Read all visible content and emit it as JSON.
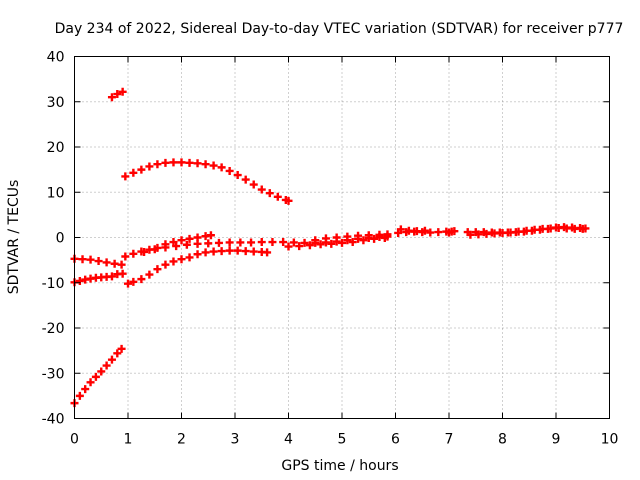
{
  "chart_data": {
    "type": "scatter",
    "title": "Day 234 of 2022, Sidereal Day-to-day VTEC variation (SDTVAR) for receiver p777",
    "xlabel": "GPS time / hours",
    "ylabel": "SDTVAR / TECUs",
    "xlim": [
      0,
      10
    ],
    "ylim": [
      -40,
      40
    ],
    "xticks": [
      "0",
      "1",
      "2",
      "3",
      "4",
      "5",
      "6",
      "7",
      "8",
      "9",
      "10"
    ],
    "yticks": [
      "-40",
      "-30",
      "-20",
      "-10",
      "0",
      "10",
      "20",
      "30",
      "40"
    ],
    "grid": true,
    "marker": "+",
    "color": "#ff0000",
    "series": [
      {
        "points": [
          [
            0.0,
            -36.6
          ],
          [
            0.1,
            -35.0
          ],
          [
            0.2,
            -33.5
          ],
          [
            0.3,
            -32.0
          ],
          [
            0.4,
            -30.8
          ],
          [
            0.5,
            -29.6
          ],
          [
            0.6,
            -28.3
          ],
          [
            0.7,
            -27.0
          ],
          [
            0.8,
            -25.6
          ],
          [
            0.88,
            -24.6
          ]
        ]
      },
      {
        "points": [
          [
            0.7,
            31.0
          ],
          [
            0.8,
            31.7
          ],
          [
            0.9,
            32.2
          ]
        ]
      },
      {
        "points": [
          [
            0.0,
            -4.7
          ],
          [
            0.15,
            -4.8
          ],
          [
            0.3,
            -4.9
          ],
          [
            0.45,
            -5.2
          ],
          [
            0.6,
            -5.5
          ],
          [
            0.75,
            -5.8
          ],
          [
            0.88,
            -6.0
          ]
        ]
      },
      {
        "points": [
          [
            0.0,
            -9.9
          ],
          [
            0.1,
            -9.6
          ],
          [
            0.2,
            -9.3
          ],
          [
            0.3,
            -9.1
          ],
          [
            0.4,
            -8.9
          ],
          [
            0.5,
            -8.8
          ],
          [
            0.6,
            -8.7
          ],
          [
            0.7,
            -8.6
          ],
          [
            0.8,
            -8.1
          ],
          [
            0.9,
            -8.0
          ]
        ]
      },
      {
        "points": [
          [
            0.95,
            13.5
          ],
          [
            1.1,
            14.3
          ],
          [
            1.25,
            15.0
          ],
          [
            1.4,
            15.7
          ],
          [
            1.55,
            16.2
          ],
          [
            1.7,
            16.5
          ],
          [
            1.85,
            16.6
          ],
          [
            2.0,
            16.6
          ],
          [
            2.15,
            16.5
          ],
          [
            2.3,
            16.4
          ],
          [
            2.45,
            16.2
          ],
          [
            2.6,
            15.9
          ],
          [
            2.75,
            15.5
          ],
          [
            2.9,
            14.7
          ],
          [
            3.05,
            13.8
          ],
          [
            3.2,
            12.8
          ],
          [
            3.35,
            11.7
          ],
          [
            3.5,
            10.6
          ],
          [
            3.65,
            9.8
          ],
          [
            3.8,
            9.0
          ],
          [
            3.95,
            8.3
          ],
          [
            4.0,
            8.1
          ]
        ]
      },
      {
        "points": [
          [
            1.0,
            -10.2
          ],
          [
            1.1,
            -9.8
          ],
          [
            1.25,
            -9.2
          ],
          [
            1.4,
            -8.2
          ],
          [
            1.55,
            -7.0
          ],
          [
            1.7,
            -6.0
          ],
          [
            1.85,
            -5.3
          ],
          [
            2.0,
            -4.8
          ],
          [
            2.15,
            -4.4
          ],
          [
            2.3,
            -3.7
          ],
          [
            2.45,
            -3.3
          ],
          [
            2.6,
            -3.1
          ],
          [
            2.75,
            -3.0
          ],
          [
            2.9,
            -2.9
          ],
          [
            3.05,
            -2.9
          ],
          [
            3.2,
            -3.0
          ],
          [
            3.35,
            -3.1
          ],
          [
            3.5,
            -3.2
          ],
          [
            3.6,
            -3.3
          ]
        ]
      },
      {
        "points": [
          [
            0.95,
            -4.2
          ],
          [
            1.1,
            -3.6
          ],
          [
            1.25,
            -3.1
          ],
          [
            1.4,
            -2.7
          ],
          [
            1.55,
            -2.3
          ],
          [
            1.7,
            -1.5
          ],
          [
            1.85,
            -1.0
          ],
          [
            2.0,
            -0.6
          ],
          [
            2.15,
            -0.3
          ],
          [
            2.3,
            0.0
          ],
          [
            2.45,
            0.3
          ],
          [
            2.55,
            0.5
          ]
        ]
      },
      {
        "points": [
          [
            1.3,
            -3.2
          ],
          [
            1.5,
            -2.6
          ],
          [
            1.7,
            -2.2
          ],
          [
            1.9,
            -1.9
          ],
          [
            2.1,
            -1.6
          ],
          [
            2.3,
            -1.4
          ],
          [
            2.5,
            -1.3
          ],
          [
            2.7,
            -1.2
          ],
          [
            2.9,
            -1.1
          ],
          [
            3.1,
            -1.1
          ],
          [
            3.3,
            -1.1
          ],
          [
            3.5,
            -1.0
          ],
          [
            3.7,
            -1.0
          ],
          [
            3.9,
            -1.0
          ],
          [
            4.1,
            -1.1
          ],
          [
            4.3,
            -1.2
          ],
          [
            4.5,
            -1.2
          ],
          [
            4.7,
            -1.1
          ],
          [
            4.9,
            -0.9
          ],
          [
            5.1,
            -0.6
          ],
          [
            5.3,
            -0.3
          ],
          [
            5.5,
            -0.1
          ],
          [
            5.7,
            0.1
          ],
          [
            5.85,
            0.2
          ]
        ]
      },
      {
        "points": [
          [
            4.0,
            -2.0
          ],
          [
            4.2,
            -1.9
          ],
          [
            4.4,
            -1.7
          ],
          [
            4.6,
            -1.5
          ],
          [
            4.8,
            -1.4
          ],
          [
            5.0,
            -1.2
          ],
          [
            5.2,
            -1.0
          ],
          [
            5.4,
            -0.6
          ],
          [
            5.6,
            -0.3
          ],
          [
            5.8,
            -0.1
          ]
        ]
      },
      {
        "points": [
          [
            4.5,
            -0.6
          ],
          [
            4.7,
            -0.2
          ],
          [
            4.9,
            0.0
          ],
          [
            5.1,
            0.2
          ],
          [
            5.3,
            0.4
          ],
          [
            5.5,
            0.5
          ],
          [
            5.7,
            0.6
          ],
          [
            5.85,
            0.7
          ]
        ]
      },
      {
        "points": [
          [
            6.05,
            1.0
          ],
          [
            6.2,
            1.2
          ],
          [
            6.35,
            1.3
          ],
          [
            6.5,
            1.2
          ],
          [
            6.65,
            1.1
          ],
          [
            6.8,
            1.2
          ],
          [
            6.95,
            1.3
          ]
        ]
      },
      {
        "points": [
          [
            6.1,
            1.8
          ],
          [
            6.25,
            1.5
          ],
          [
            6.4,
            1.4
          ],
          [
            6.55,
            1.5
          ]
        ]
      },
      {
        "points": [
          [
            7.0,
            1.1
          ],
          [
            7.05,
            1.3
          ],
          [
            7.1,
            1.4
          ]
        ]
      },
      {
        "points": [
          [
            7.35,
            1.2
          ],
          [
            7.5,
            1.2
          ],
          [
            7.65,
            1.2
          ],
          [
            7.8,
            1.1
          ],
          [
            7.95,
            1.1
          ],
          [
            8.1,
            1.1
          ],
          [
            8.25,
            1.2
          ],
          [
            8.4,
            1.3
          ],
          [
            8.55,
            1.5
          ],
          [
            8.7,
            1.7
          ],
          [
            8.85,
            1.9
          ],
          [
            9.0,
            2.2
          ],
          [
            9.15,
            2.3
          ],
          [
            9.3,
            2.2
          ],
          [
            9.45,
            2.1
          ],
          [
            9.55,
            2.0
          ]
        ]
      },
      {
        "points": [
          [
            7.4,
            0.6
          ],
          [
            7.55,
            0.7
          ],
          [
            7.7,
            0.8
          ],
          [
            7.85,
            0.9
          ],
          [
            8.0,
            1.0
          ],
          [
            8.15,
            1.1
          ],
          [
            8.3,
            1.3
          ],
          [
            8.45,
            1.5
          ],
          [
            8.6,
            1.7
          ],
          [
            8.75,
            1.9
          ],
          [
            8.9,
            2.0
          ],
          [
            9.05,
            2.1
          ],
          [
            9.2,
            2.0
          ],
          [
            9.35,
            1.9
          ],
          [
            9.5,
            1.9
          ]
        ]
      }
    ]
  }
}
